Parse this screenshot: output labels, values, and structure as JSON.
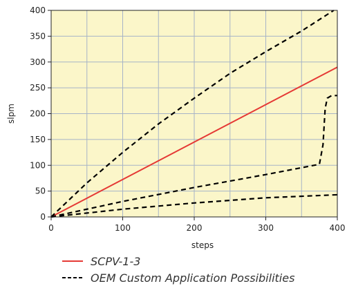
{
  "chart_data": {
    "type": "line",
    "xlabel": "steps",
    "ylabel": "slpm",
    "xlim": [
      0,
      400
    ],
    "ylim": [
      0,
      400
    ],
    "x_ticks": [
      0,
      100,
      200,
      300,
      400
    ],
    "y_ticks": [
      0,
      50,
      100,
      150,
      200,
      250,
      300,
      350,
      400
    ],
    "grid": true,
    "legend_position": "bottom",
    "colors": {
      "plot_background": "#fbf6c9",
      "grid": "#a6b3c7",
      "primary_series": "#e53935",
      "dashed_series": "#000000"
    },
    "series": [
      {
        "name": "SCPV-1-3",
        "style": "solid",
        "x": [
          0,
          400
        ],
        "y": [
          0,
          290
        ]
      },
      {
        "name": "OEM Custom Application Possibilities",
        "style": "dashed",
        "x": [
          0,
          50,
          100,
          150,
          200,
          250,
          300,
          350,
          395
        ],
        "y": [
          0,
          66,
          125,
          180,
          230,
          278,
          320,
          360,
          400
        ]
      },
      {
        "name": "",
        "style": "dashed",
        "x": [
          0,
          100,
          200,
          300,
          375,
          380,
          383,
          386,
          392,
          400
        ],
        "y": [
          0,
          30,
          57,
          82,
          102,
          140,
          210,
          230,
          235,
          235
        ]
      },
      {
        "name": "",
        "style": "dashed",
        "x": [
          0,
          100,
          200,
          300,
          400
        ],
        "y": [
          0,
          15,
          27,
          37,
          43
        ]
      }
    ],
    "legend": [
      {
        "label": "SCPV-1-3",
        "style": "solid",
        "color": "#e53935"
      },
      {
        "label": "OEM Custom Application Possibilities",
        "style": "dashed",
        "color": "#000000"
      }
    ]
  }
}
